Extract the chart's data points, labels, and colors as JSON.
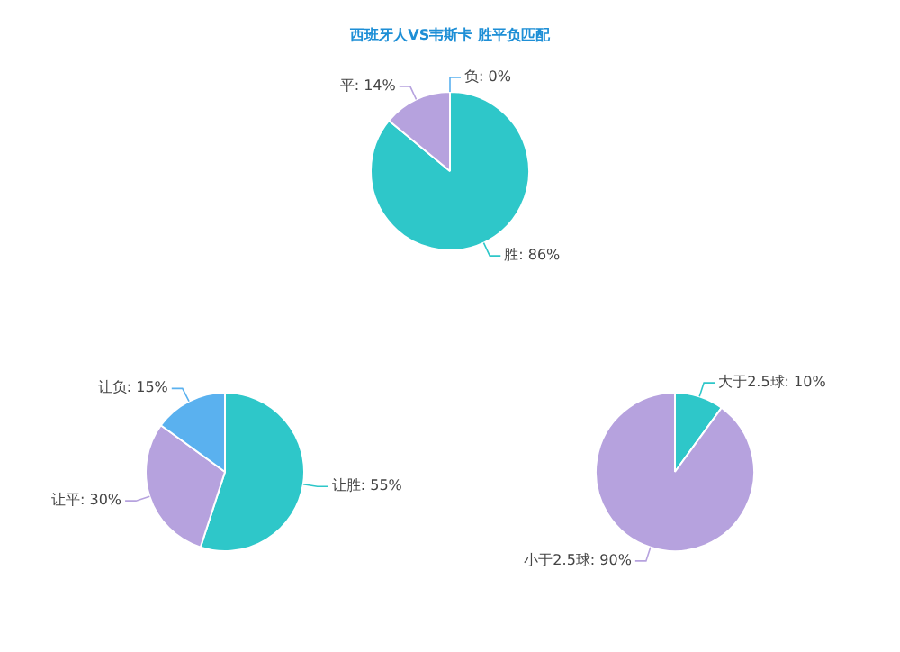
{
  "chart_data": [
    {
      "type": "pie",
      "title": "西班牙人VS韦斯卡 胜平负匹配",
      "categories": [
        "胜",
        "平",
        "负"
      ],
      "values": [
        86,
        14,
        0
      ],
      "value_labels": [
        "86%",
        "14%",
        "0%"
      ],
      "colors": [
        "#2ec7c9",
        "#b6a2de",
        "#5ab1ef"
      ]
    },
    {
      "type": "pie",
      "categories": [
        "让胜",
        "让平",
        "让负"
      ],
      "values": [
        55,
        30,
        15
      ],
      "value_labels": [
        "55%",
        "30%",
        "15%"
      ],
      "colors": [
        "#2ec7c9",
        "#b6a2de",
        "#5ab1ef"
      ]
    },
    {
      "type": "pie",
      "categories": [
        "大于2.5球",
        "小于2.5球"
      ],
      "values": [
        10,
        90
      ],
      "value_labels": [
        "10%",
        "90%"
      ],
      "colors": [
        "#2ec7c9",
        "#b6a2de"
      ]
    }
  ]
}
